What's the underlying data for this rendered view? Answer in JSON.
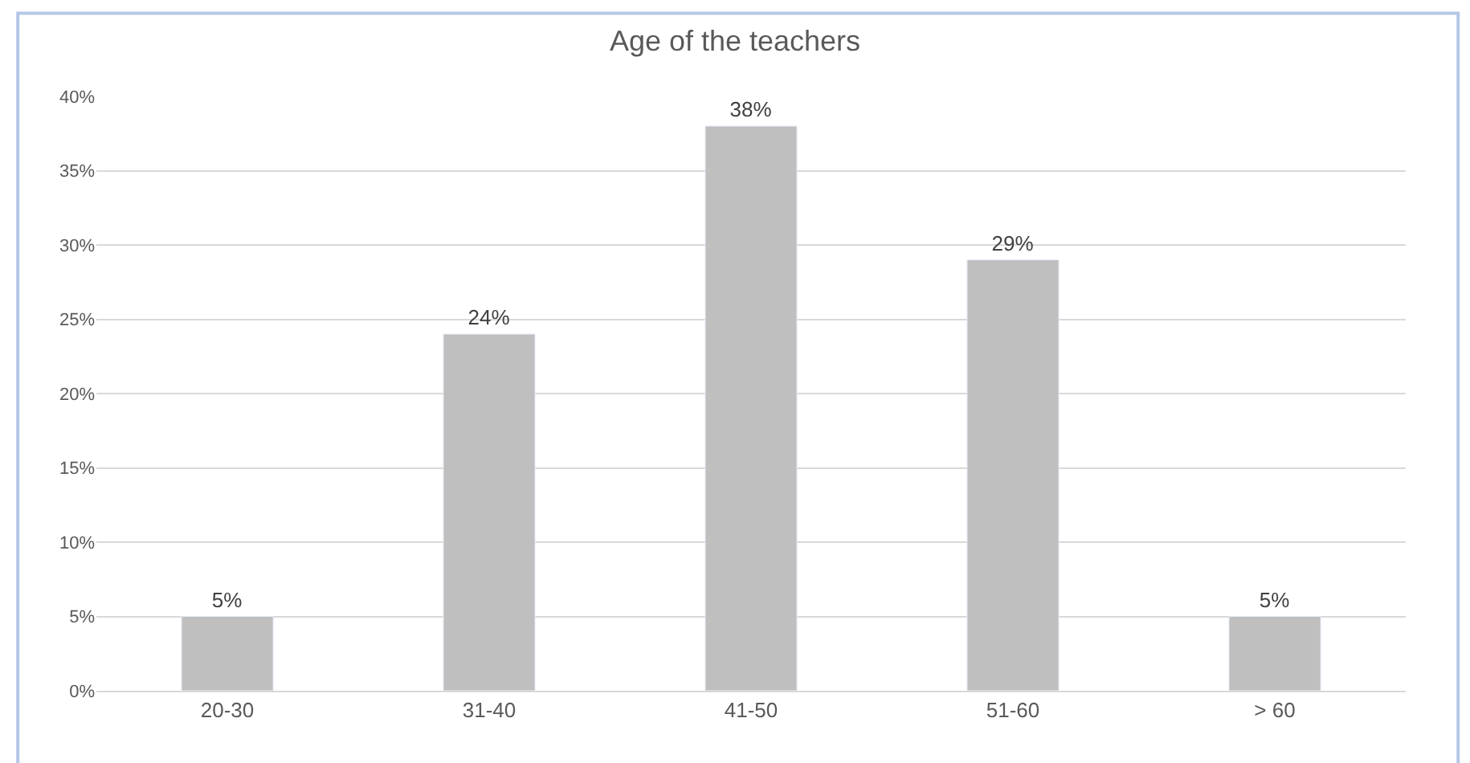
{
  "chart_data": {
    "type": "bar",
    "title": "Age of the teachers",
    "categories": [
      "20-30",
      "31-40",
      "41-50",
      "51-60",
      "> 60"
    ],
    "values": [
      5,
      24,
      38,
      29,
      5
    ],
    "value_labels": [
      "5%",
      "24%",
      "38%",
      "29%",
      "5%"
    ],
    "color": "#bfbfbf",
    "ylim": [
      0,
      40
    ],
    "yticks": [
      {
        "value": 0,
        "label": "0%"
      },
      {
        "value": 5,
        "label": "5%"
      },
      {
        "value": 10,
        "label": "10%"
      },
      {
        "value": 15,
        "label": "15%"
      },
      {
        "value": 20,
        "label": "20%"
      },
      {
        "value": 25,
        "label": "25%"
      },
      {
        "value": 30,
        "label": "30%"
      },
      {
        "value": 35,
        "label": "35%"
      },
      {
        "value": 40,
        "label": "40%"
      }
    ],
    "grid": "y"
  }
}
